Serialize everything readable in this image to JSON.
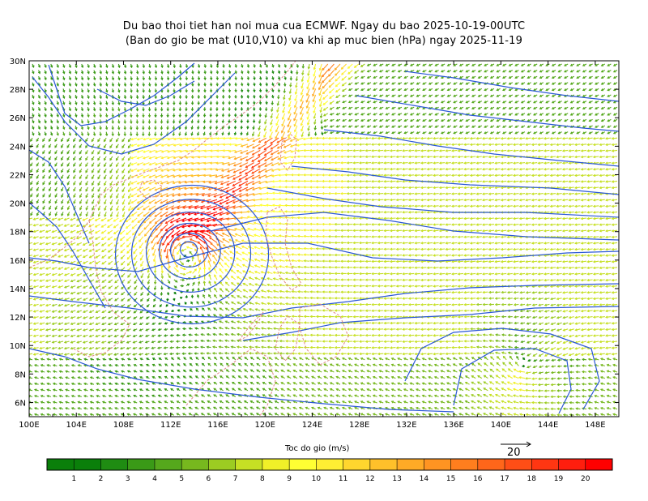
{
  "title_line1": "Du bao thoi tiet han noi mua cua ECMWF. Ngay du bao 2025-10-19-00UTC",
  "title_line2": "(Ban do gio be mat (U10,V10) va khi ap muc bien (hPa) ngay 2025-11-19",
  "lat_labels": [
    "6N",
    "8N",
    "10N",
    "12N",
    "14N",
    "16N",
    "18N",
    "20N",
    "22N",
    "24N",
    "26N",
    "28N",
    "30N"
  ],
  "lon_labels": [
    "100E",
    "104E",
    "108E",
    "112E",
    "116E",
    "120E",
    "124E",
    "128E",
    "132E",
    "136E",
    "140E",
    "144E",
    "148E"
  ],
  "colorbar": {
    "title": "Toc do gio (m/s)",
    "labels": [
      "1",
      "2",
      "3",
      "4",
      "5",
      "6",
      "7",
      "8",
      "9",
      "10",
      "11",
      "12",
      "13",
      "14",
      "15",
      "16",
      "17",
      "18",
      "19",
      "20"
    ],
    "colors": [
      "#0a7f0a",
      "#1f8c12",
      "#3a9a17",
      "#55a81c",
      "#77b81e",
      "#9ccc22",
      "#c6e024",
      "#f0f028",
      "#ffff33",
      "#ffee33",
      "#ffd62e",
      "#ffc02a",
      "#ffaa26",
      "#ff9422",
      "#ff7e1e",
      "#ff661a",
      "#ff4e16",
      "#ff3612",
      "#ff1e0e",
      "#ff0000"
    ]
  },
  "reference_vector": "20",
  "cyclone_center": {
    "lon": 113.5,
    "lat": 16.8
  },
  "map_extent": {
    "lon": [
      100,
      150
    ],
    "lat": [
      5,
      30
    ]
  }
}
